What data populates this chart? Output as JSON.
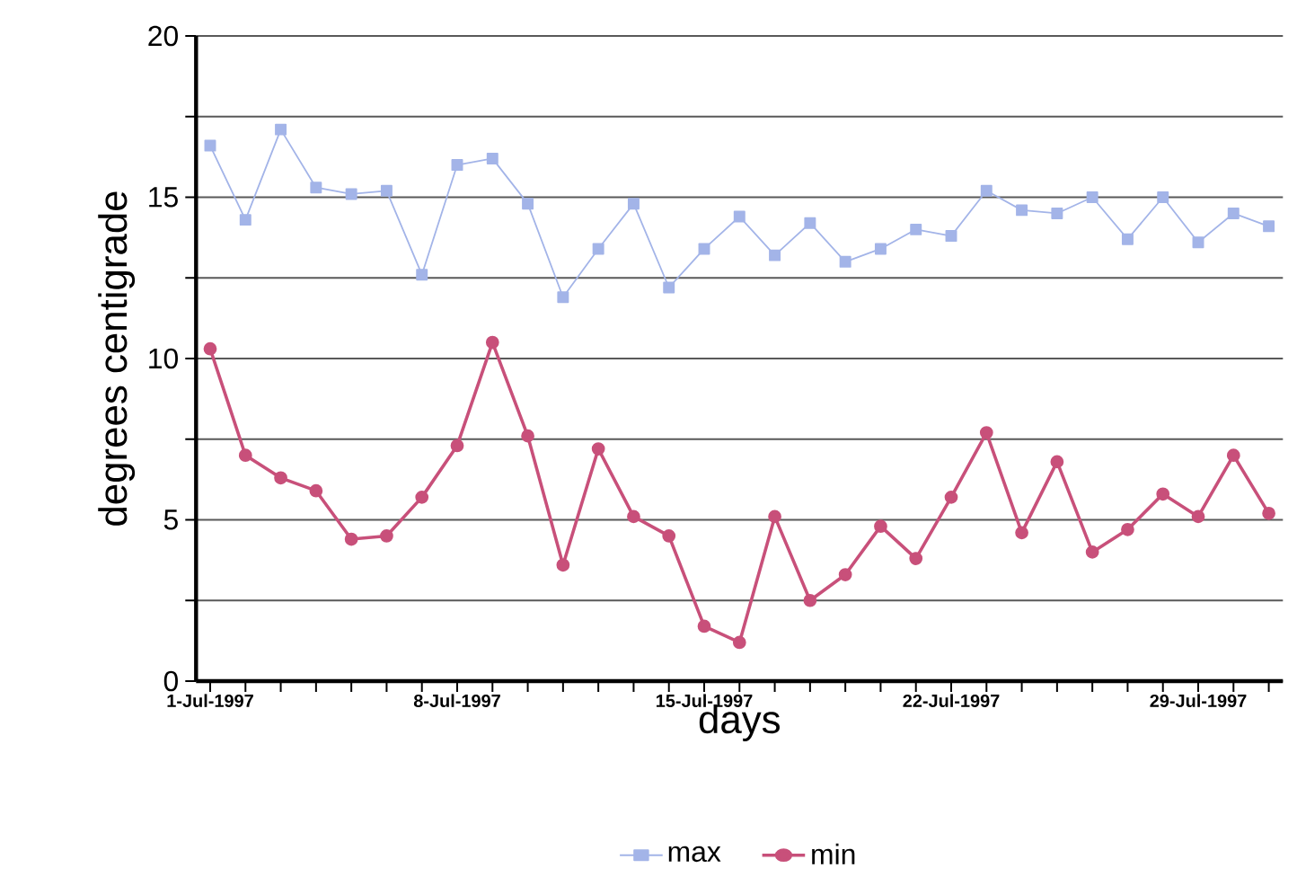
{
  "chart_data": {
    "type": "line",
    "xlabel": "days",
    "ylabel": "degrees centigrade",
    "categories": [
      "1-Jul-1997",
      null,
      null,
      null,
      null,
      null,
      null,
      "8-Jul-1997",
      null,
      null,
      null,
      null,
      null,
      null,
      "15-Jul-1997",
      null,
      null,
      null,
      null,
      null,
      null,
      "22-Jul-1997",
      null,
      null,
      null,
      null,
      null,
      null,
      "29-Jul-1997",
      null,
      null
    ],
    "series": [
      {
        "name": "max",
        "color": "#a3b4e8",
        "marker": "square",
        "values": [
          16.6,
          14.3,
          17.1,
          15.3,
          15.1,
          15.2,
          12.6,
          16.0,
          16.2,
          14.8,
          11.9,
          13.4,
          14.8,
          12.2,
          13.4,
          14.4,
          13.2,
          14.2,
          13.0,
          13.4,
          14.0,
          13.8,
          15.2,
          14.6,
          14.5,
          15.0,
          13.7,
          15.0,
          13.6,
          14.5,
          14.1
        ]
      },
      {
        "name": "min",
        "color": "#c8507a",
        "marker": "circle",
        "values": [
          10.3,
          7.0,
          6.3,
          5.9,
          4.4,
          4.5,
          5.7,
          7.3,
          10.5,
          7.6,
          3.6,
          7.2,
          5.1,
          4.5,
          1.7,
          1.2,
          5.1,
          2.5,
          3.3,
          4.8,
          3.8,
          5.7,
          7.7,
          4.6,
          6.8,
          4.0,
          4.7,
          5.8,
          5.1,
          7.0,
          5.2
        ]
      }
    ],
    "ylim": [
      0,
      20
    ],
    "yticks": [
      0,
      {
        "value": 2.5,
        "label": null
      },
      5,
      {
        "value": 7.5,
        "label": null
      },
      10,
      {
        "value": 12.5,
        "label": null
      },
      15,
      {
        "value": 17.5,
        "label": null
      },
      20
    ],
    "grid": "y",
    "legend": "bottom",
    "line_style": "solid"
  }
}
